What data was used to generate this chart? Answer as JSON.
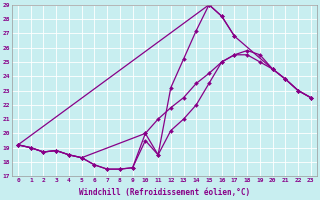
{
  "xlabel": "Windchill (Refroidissement éolien,°C)",
  "ylabel": "",
  "bg_color": "#c8eef0",
  "grid_color": "#aaaaaa",
  "line_color": "#880088",
  "xlim": [
    -0.5,
    23.5
  ],
  "ylim": [
    17,
    29
  ],
  "xticks": [
    0,
    1,
    2,
    3,
    4,
    5,
    6,
    7,
    8,
    9,
    10,
    11,
    12,
    13,
    14,
    15,
    16,
    17,
    18,
    19,
    20,
    21,
    22,
    23
  ],
  "yticks": [
    17,
    18,
    19,
    20,
    21,
    22,
    23,
    24,
    25,
    26,
    27,
    28,
    29
  ],
  "series": [
    {
      "x": [
        0,
        1,
        2,
        3,
        4,
        5,
        6,
        7,
        8,
        9,
        10,
        11,
        12,
        13,
        14,
        15,
        16,
        17,
        18,
        19,
        20,
        21,
        22,
        23
      ],
      "y": [
        19.2,
        19.0,
        18.7,
        18.8,
        18.5,
        18.3,
        17.8,
        17.5,
        17.5,
        17.6,
        20.0,
        18.5,
        23.2,
        25.2,
        27.2,
        29.0,
        28.2,
        26.8,
        null,
        null,
        null,
        null,
        null,
        null
      ]
    },
    {
      "x": [
        0,
        15,
        16,
        17,
        20,
        21,
        22,
        23
      ],
      "y": [
        19.2,
        29.0,
        28.2,
        26.8,
        24.5,
        23.8,
        23.0,
        22.5
      ]
    },
    {
      "x": [
        0,
        1,
        2,
        3,
        4,
        5,
        10,
        11,
        12,
        13,
        14,
        15,
        16,
        17,
        18,
        19,
        20,
        21,
        22,
        23
      ],
      "y": [
        19.2,
        19.0,
        18.7,
        18.8,
        18.5,
        18.3,
        20.0,
        21.0,
        21.8,
        22.5,
        23.5,
        24.2,
        25.0,
        25.5,
        25.8,
        25.5,
        24.5,
        23.8,
        23.0,
        22.5
      ]
    },
    {
      "x": [
        0,
        1,
        2,
        3,
        4,
        5,
        6,
        7,
        8,
        9,
        10,
        11,
        12,
        13,
        14,
        15,
        16,
        17,
        18,
        19,
        20,
        21,
        22,
        23
      ],
      "y": [
        19.2,
        19.0,
        18.7,
        18.8,
        18.5,
        18.3,
        17.8,
        17.5,
        17.5,
        17.6,
        19.5,
        18.5,
        20.2,
        21.0,
        22.0,
        23.5,
        25.0,
        25.5,
        25.5,
        25.0,
        24.5,
        23.8,
        23.0,
        22.5
      ]
    }
  ]
}
